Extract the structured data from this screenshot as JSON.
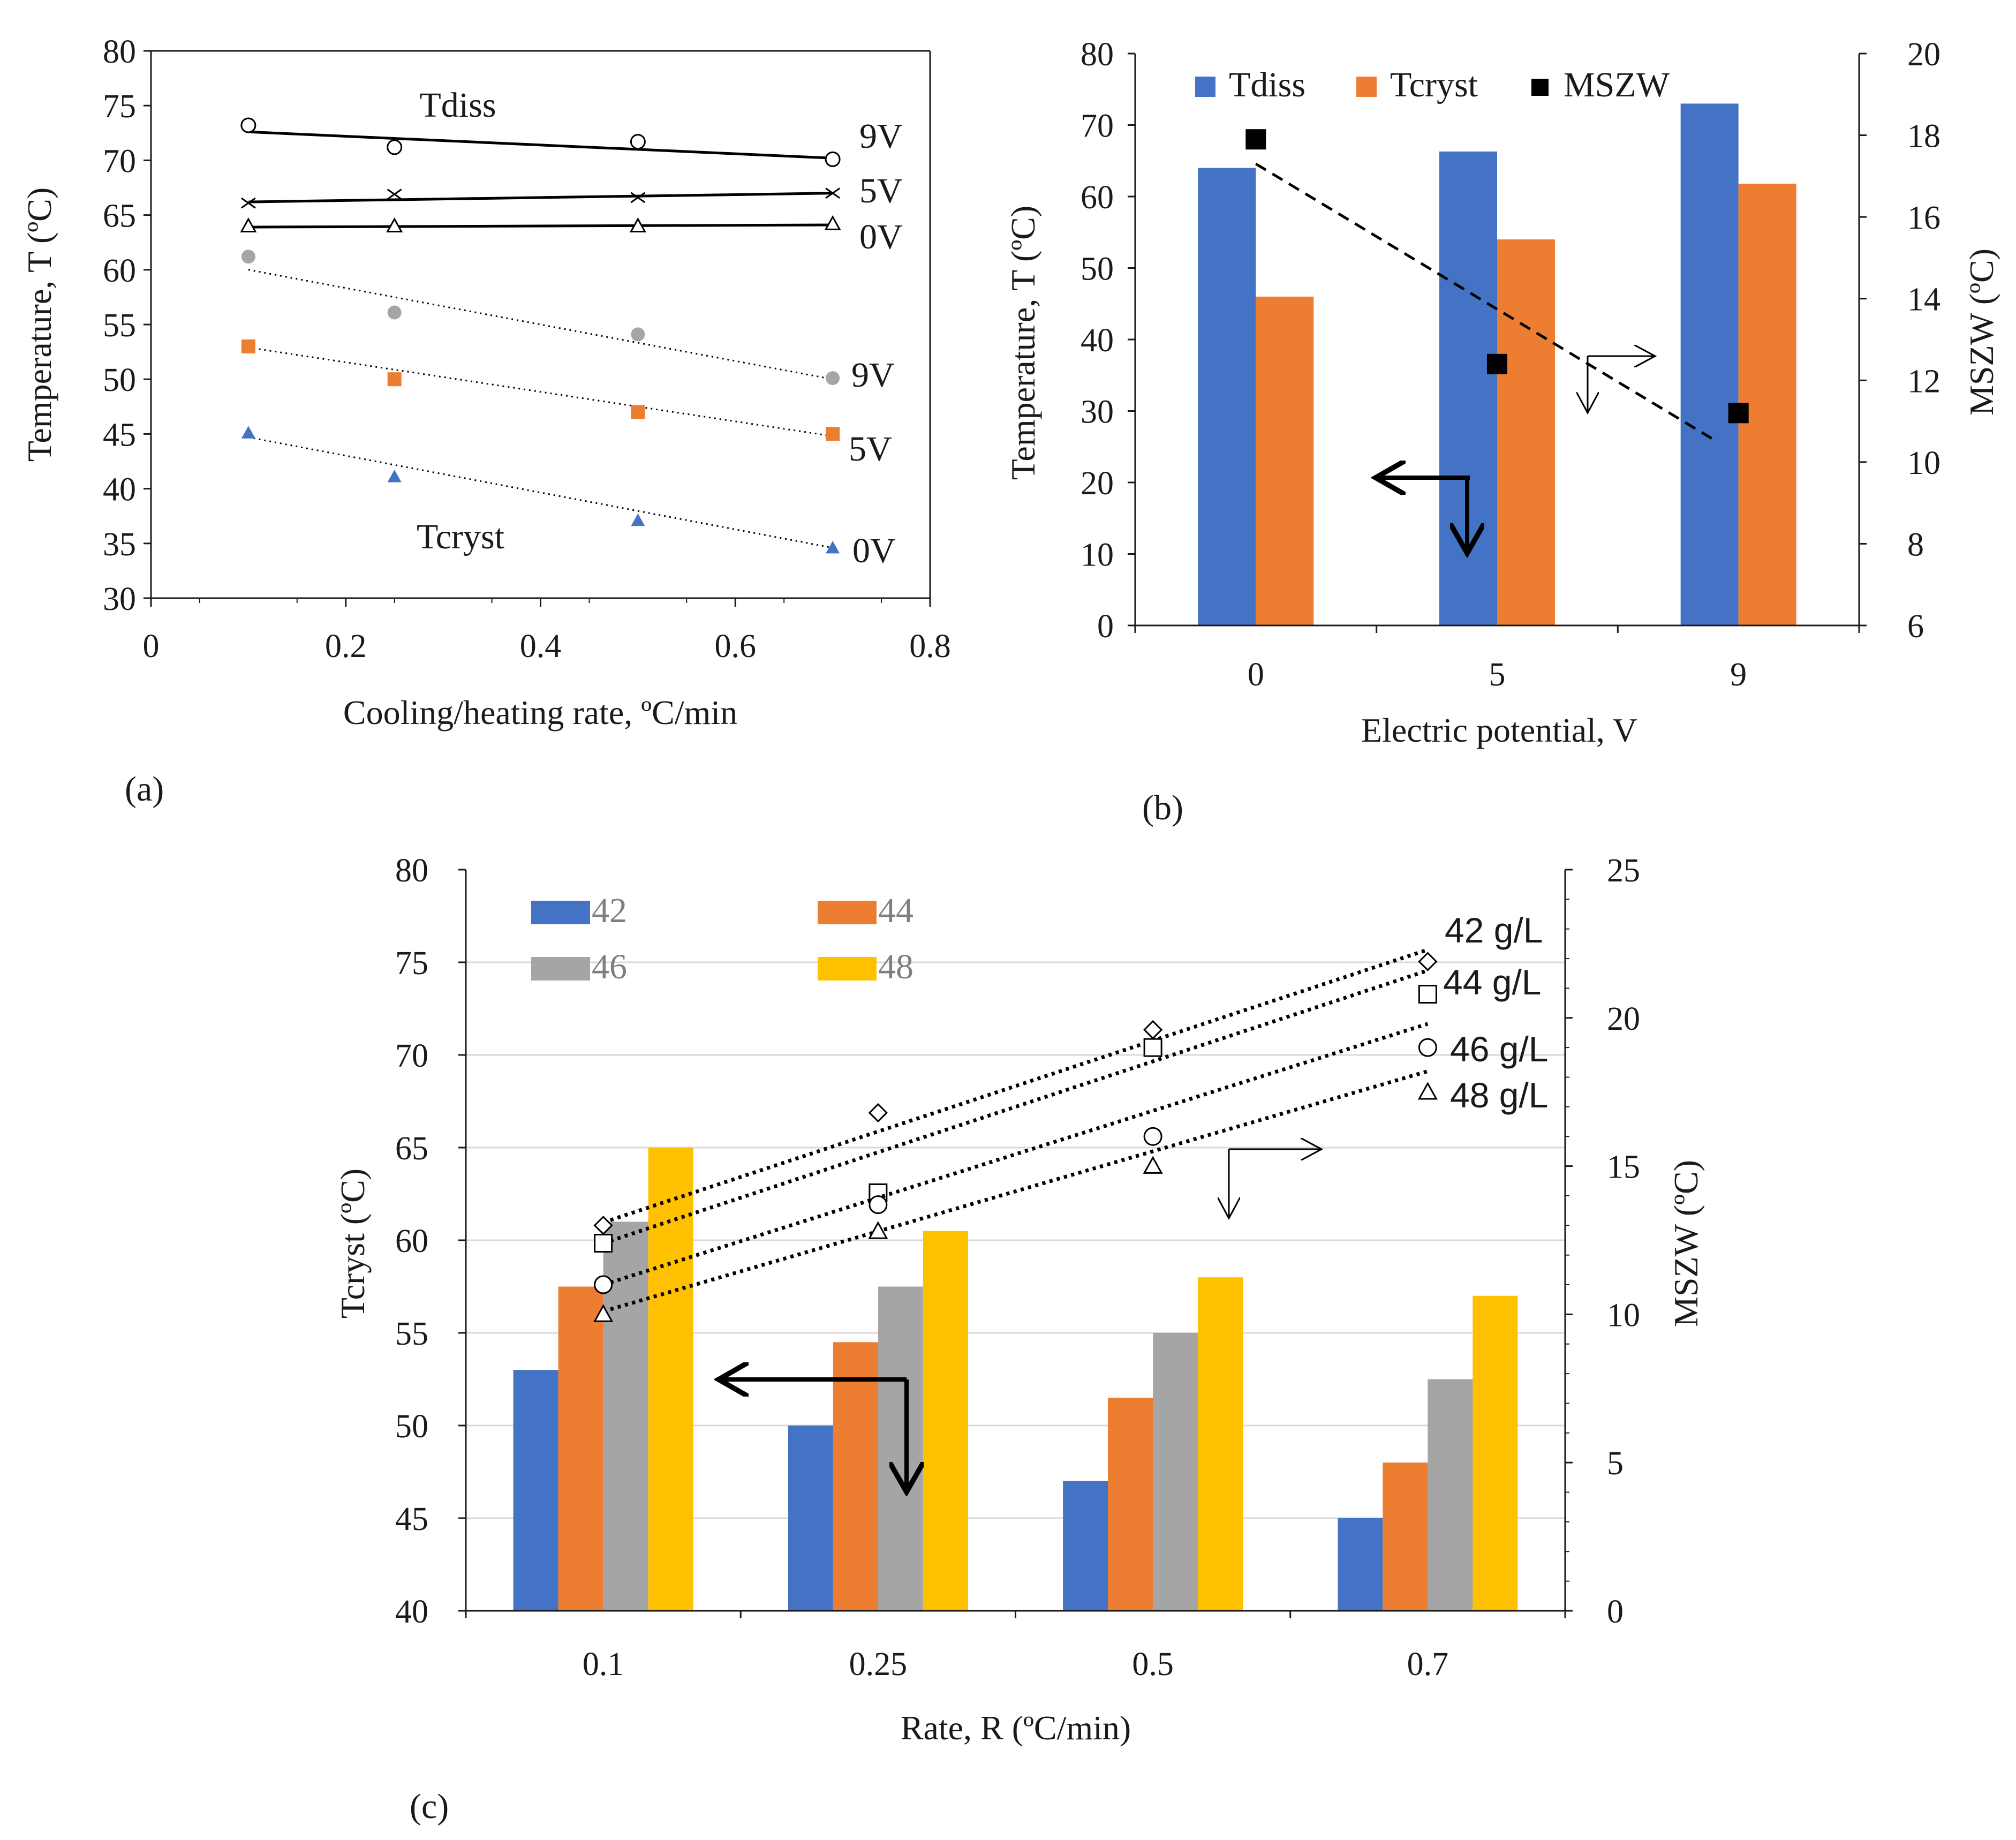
{
  "chart_data": [
    {
      "panel": "(a)",
      "type": "scatter",
      "xlabel": "Cooling/heating rate, ºC/min",
      "ylabel": "Temperature, T (ºC)",
      "xlim": [
        0,
        0.8
      ],
      "ylim": [
        30,
        80
      ],
      "xticks": [
        "0",
        "0.2",
        "0.4",
        "0.6",
        "0.8"
      ],
      "yticks": [
        "30",
        "35",
        "40",
        "45",
        "50",
        "55",
        "60",
        "65",
        "70",
        "75",
        "80"
      ],
      "annotations": [
        "Tdiss",
        "Tcryst"
      ],
      "series": [
        {
          "name": "Tdiss 9V",
          "label": "9V",
          "marker": "circle-open",
          "color": "#000000",
          "x": [
            0.1,
            0.25,
            0.5,
            0.7
          ],
          "y": [
            73.2,
            71.2,
            71.7,
            70.1
          ],
          "fit": [
            72.6,
            70.2
          ]
        },
        {
          "name": "Tdiss 5V",
          "label": "5V",
          "marker": "x",
          "color": "#000000",
          "x": [
            0.1,
            0.25,
            0.5,
            0.7
          ],
          "y": [
            66.1,
            66.9,
            66.6,
            67.0
          ],
          "fit": [
            66.2,
            67.0
          ]
        },
        {
          "name": "Tdiss 0V",
          "label": "0V",
          "marker": "triangle-open",
          "color": "#000000",
          "x": [
            0.1,
            0.25,
            0.5,
            0.7
          ],
          "y": [
            64.0,
            64.0,
            64.0,
            64.2
          ],
          "fit": [
            63.9,
            64.1
          ]
        },
        {
          "name": "Tcryst 9V",
          "label": "9V",
          "marker": "circle",
          "color": "#a5a5a5",
          "x": [
            0.1,
            0.25,
            0.5,
            0.7
          ],
          "y": [
            61.2,
            56.1,
            54.1,
            50.1
          ],
          "fit": [
            60.0,
            50.0
          ]
        },
        {
          "name": "Tcryst 5V",
          "label": "5V",
          "marker": "square",
          "color": "#ed7d31",
          "x": [
            0.1,
            0.25,
            0.5,
            0.7
          ],
          "y": [
            53.0,
            50.0,
            47.0,
            45.0
          ],
          "fit": [
            52.9,
            44.8
          ]
        },
        {
          "name": "Tcryst 0V",
          "label": "0V",
          "marker": "triangle",
          "color": "#4472c4",
          "x": [
            0.1,
            0.25,
            0.5,
            0.7
          ],
          "y": [
            45.1,
            41.1,
            37.1,
            34.6
          ],
          "fit": [
            44.7,
            34.6
          ]
        }
      ]
    },
    {
      "panel": "(b)",
      "type": "bar",
      "xlabel": "Electric potential, V",
      "ylabel": "Temperature, T (ºC)",
      "y2label": "MSZW (ºC)",
      "categories": [
        "0",
        "5",
        "9"
      ],
      "ylim": [
        0,
        80
      ],
      "y2lim": [
        6,
        20
      ],
      "yticks": [
        "0",
        "10",
        "20",
        "30",
        "40",
        "50",
        "60",
        "70",
        "80"
      ],
      "y2ticks": [
        "6",
        "8",
        "10",
        "12",
        "14",
        "16",
        "18",
        "20"
      ],
      "series": [
        {
          "name": "Tdiss",
          "color": "#4472c4",
          "values": [
            64,
            66.3,
            73
          ]
        },
        {
          "name": "Tcryst",
          "color": "#ed7d31",
          "values": [
            46,
            54,
            61.8
          ]
        },
        {
          "name": "MSZW",
          "color": "#000000",
          "axis": "secondary",
          "marker": "square",
          "values": [
            17.9,
            12.4,
            11.2
          ],
          "fit": [
            17.3,
            10.5
          ]
        }
      ]
    },
    {
      "panel": "(c)",
      "type": "bar",
      "xlabel": "Rate, R (ºC/min)",
      "ylabel": "Tcryst (ºC)",
      "y2label": "MSZW (ºC)",
      "categories": [
        "0.1",
        "0.25",
        "0.5",
        "0.7"
      ],
      "ylim": [
        40,
        80
      ],
      "y2lim": [
        0,
        25
      ],
      "yticks": [
        "40",
        "45",
        "50",
        "55",
        "60",
        "65",
        "70",
        "75",
        "80"
      ],
      "y2ticks": [
        "0",
        "5",
        "10",
        "15",
        "20",
        "25"
      ],
      "series": [
        {
          "name": "42",
          "color": "#4472c4",
          "values": [
            53,
            50,
            47,
            45
          ]
        },
        {
          "name": "44",
          "color": "#ed7d31",
          "values": [
            57.5,
            54.5,
            51.5,
            48
          ]
        },
        {
          "name": "46",
          "color": "#a5a5a5",
          "values": [
            61,
            57.5,
            55,
            52.5
          ]
        },
        {
          "name": "48",
          "color": "#ffc000",
          "values": [
            65,
            60.5,
            58,
            57
          ]
        }
      ],
      "mszw_series": [
        {
          "name": "42 g/L",
          "marker": "diamond",
          "values": [
            13.0,
            16.8,
            19.6,
            21.9
          ],
          "fit": [
            13.1,
            22.3
          ]
        },
        {
          "name": "44 g/L",
          "marker": "square",
          "values": [
            12.4,
            14.1,
            19.0,
            20.8
          ],
          "fit": [
            12.4,
            21.6
          ]
        },
        {
          "name": "46 g/L",
          "marker": "circle",
          "values": [
            11.0,
            13.7,
            16.0,
            19.0
          ],
          "fit": [
            11.0,
            19.8
          ]
        },
        {
          "name": "48 g/L",
          "marker": "triangle",
          "values": [
            10.0,
            12.8,
            15.0,
            17.5
          ],
          "fit": [
            10.1,
            18.2
          ]
        }
      ]
    }
  ]
}
